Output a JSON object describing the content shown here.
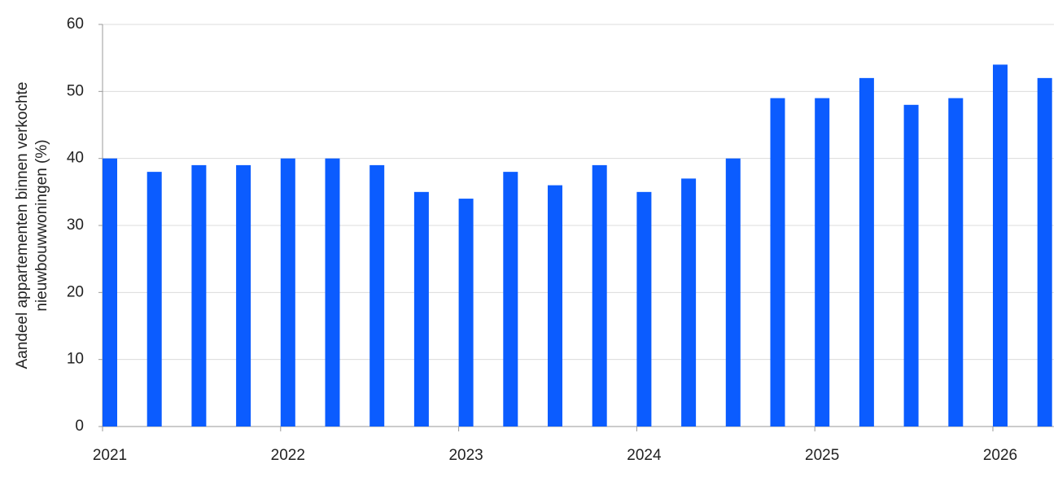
{
  "chart_data": {
    "type": "bar",
    "ylabel": [
      "Aandeel appartementen binnen verkochte",
      "nieuwbouwwoningen (%)"
    ],
    "categories": [
      "2021",
      null,
      null,
      null,
      "2022",
      null,
      null,
      null,
      "2023",
      null,
      null,
      null,
      "2024",
      null,
      null,
      null,
      "2025",
      null,
      null,
      null,
      "2026",
      null
    ],
    "values": [
      40,
      38,
      39,
      39,
      40,
      40,
      39,
      35,
      34,
      38,
      36,
      39,
      35,
      37,
      40,
      49,
      49,
      52,
      48,
      49,
      54,
      52
    ],
    "color": "#0b5cff",
    "ylim": [
      0,
      60
    ],
    "yticks": [
      0,
      10,
      20,
      30,
      40,
      50,
      60
    ],
    "grid": true
  }
}
